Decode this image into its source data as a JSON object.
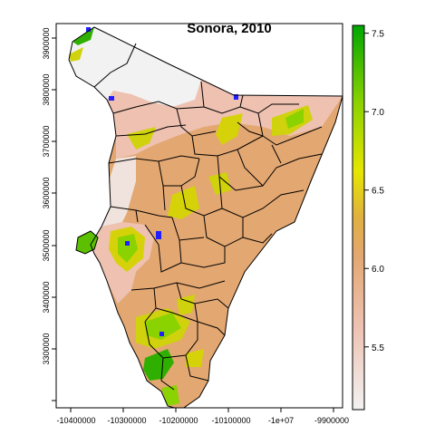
{
  "map": {
    "title": "Sonora, 2010",
    "x_ticks": [
      "-10400000",
      "-10300000",
      "-10200000",
      "-10100000",
      "-1e+07",
      "-9900000"
    ],
    "y_ticks": [
      "3300000",
      "3400000",
      "3500000",
      "3600000",
      "3700000",
      "3800000",
      "3900000"
    ],
    "colors": {
      "low": "#f2f2f2",
      "pink": "#eec1b1",
      "tan": "#e3a771",
      "yellow": "#e6e600",
      "light_green": "#8ad200",
      "green": "#00a600",
      "water": "#1f1fff",
      "boundary": "#000000"
    }
  },
  "colorbar": {
    "min": 5.1,
    "max": 7.55,
    "ticks": [
      "5.5",
      "6.0",
      "6.5",
      "7.0",
      "7.5"
    ],
    "tick_values": [
      5.5,
      6.0,
      6.5,
      7.0,
      7.5
    ]
  }
}
